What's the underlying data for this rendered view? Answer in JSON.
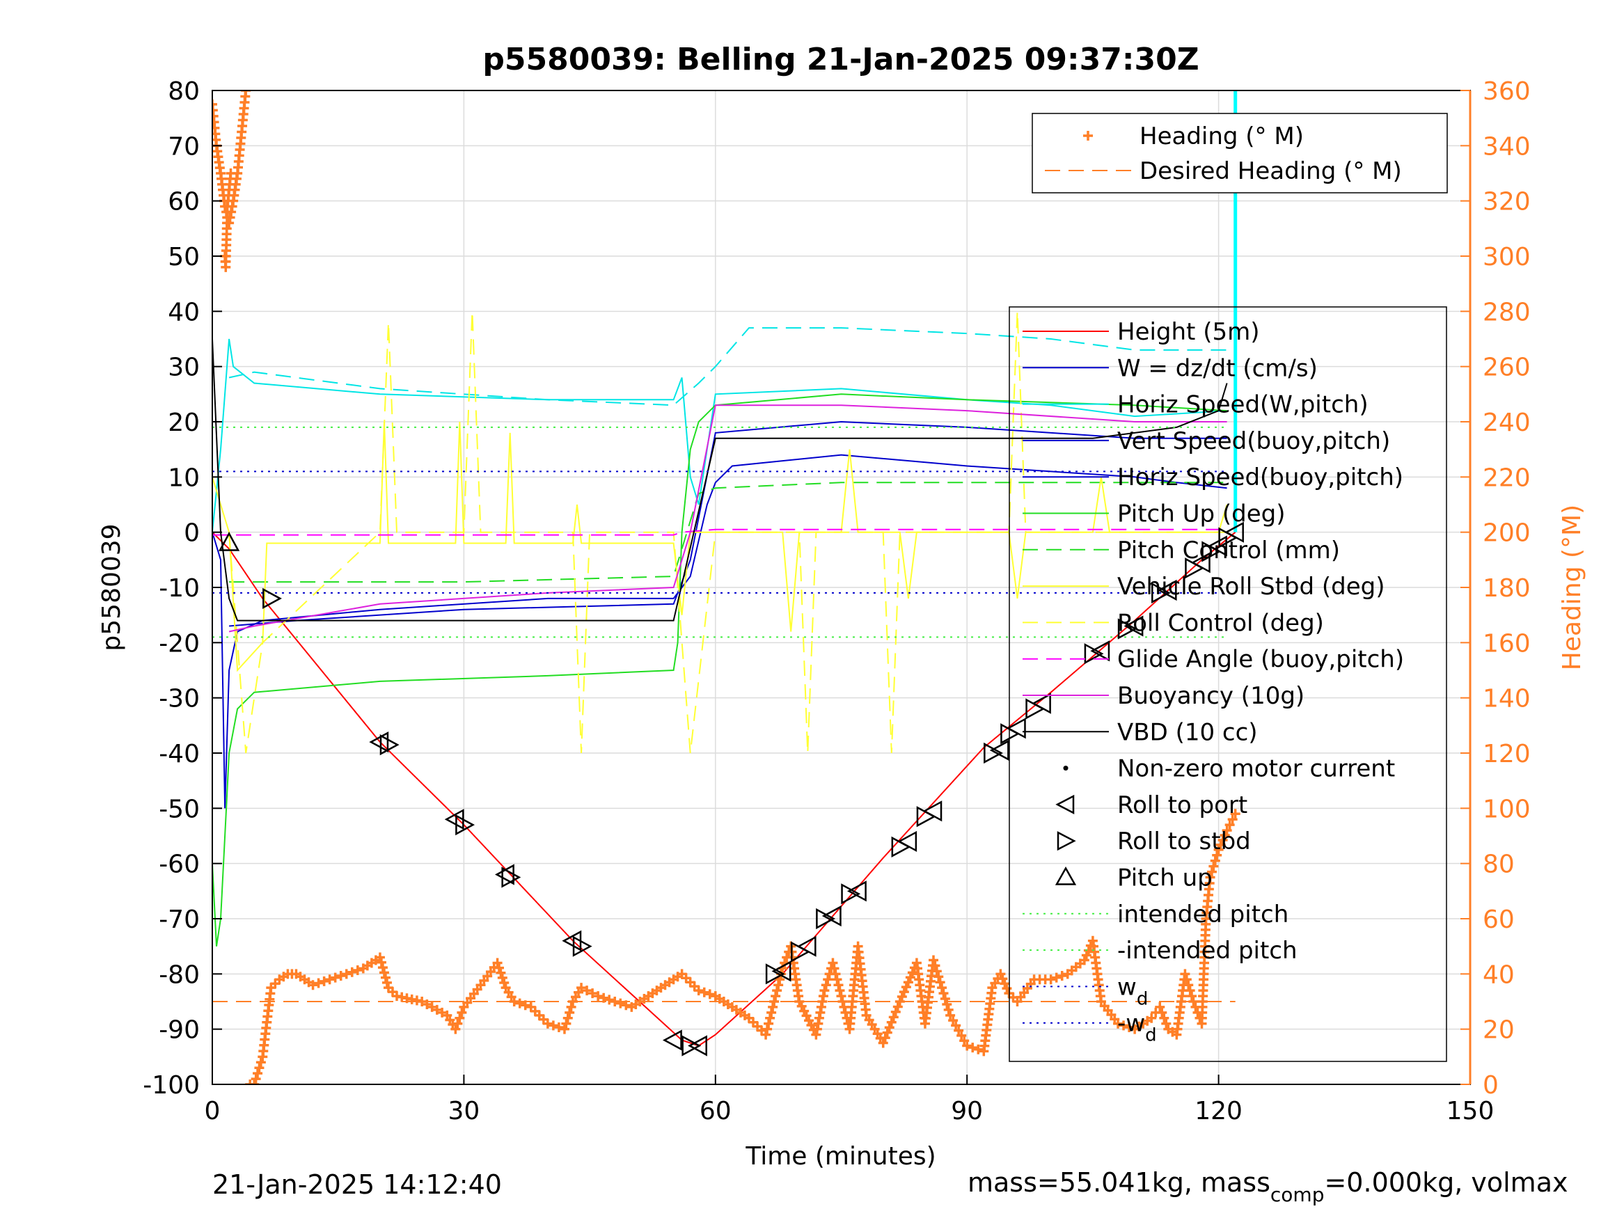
{
  "chart_data": {
    "type": "line",
    "title": "p5580039: Belling 21-Jan-2025 09:37:30Z",
    "xlabel": "Time (minutes)",
    "ylabel": "p5580039",
    "y2label": "Heading (°M)",
    "xlim": [
      0,
      150
    ],
    "ylim": [
      -100,
      80
    ],
    "y2lim": [
      0,
      360
    ],
    "xticks": [
      "0",
      "30",
      "60",
      "90",
      "120",
      "150"
    ],
    "yticks": [
      "80",
      "70",
      "60",
      "50",
      "40",
      "30",
      "20",
      "10",
      "0",
      "-10",
      "-20",
      "-30",
      "-40",
      "-50",
      "-60",
      "-70",
      "-80",
      "-90",
      "-100"
    ],
    "y2ticks": [
      "360",
      "340",
      "320",
      "300",
      "280",
      "260",
      "240",
      "220",
      "200",
      "180",
      "160",
      "140",
      "120",
      "100",
      "80",
      "60",
      "40",
      "20",
      "0"
    ],
    "grid": true,
    "footer_left": "21-Jan-2025 14:12:40",
    "footer_right": {
      "a": "mass=55.041kg, mass",
      "sub": "comp",
      "b": "=0.000kg, volmax"
    },
    "legend_heading": [
      {
        "label": "Heading (° M)",
        "color": "#ff7f27",
        "style": "plus"
      },
      {
        "label": "Desired Heading (° M)",
        "color": "#ff7f27",
        "style": "dash"
      }
    ],
    "legend_main": [
      {
        "label": "Height (5m)",
        "color": "#ff0000",
        "style": "solid"
      },
      {
        "label": "W = dz/dt (cm/s)",
        "color": "#0000cc",
        "style": "solid"
      },
      {
        "label": "Horiz Speed(W,pitch)",
        "color": "#00e5e5",
        "style": "solid"
      },
      {
        "label": "Vert Speed(buoy,pitch)",
        "color": "#0000cc",
        "style": "solid"
      },
      {
        "label": "Horiz Speed(buoy,pitch)",
        "color": "#0000cc",
        "style": "solid"
      },
      {
        "label": "Pitch Up (deg)",
        "color": "#22dd22",
        "style": "solid"
      },
      {
        "label": "Pitch Control (mm)",
        "color": "#22dd22",
        "style": "dash"
      },
      {
        "label": "Vehicle Roll Stbd (deg)",
        "color": "#ffff33",
        "style": "solid"
      },
      {
        "label": "Roll Control (deg)",
        "color": "#ffff33",
        "style": "dash"
      },
      {
        "label": "Glide Angle (buoy,pitch)",
        "color": "#ff00ff",
        "style": "dash"
      },
      {
        "label": "Buoyancy (10g)",
        "color": "#dd22dd",
        "style": "solid"
      },
      {
        "label": "VBD (10 cc)",
        "color": "#000000",
        "style": "solid"
      },
      {
        "label": "Non-zero motor current",
        "color": "#000000",
        "style": "dot"
      },
      {
        "label": "Roll to port",
        "color": "#000000",
        "style": "tri-left"
      },
      {
        "label": "Roll to stbd",
        "color": "#000000",
        "style": "tri-right"
      },
      {
        "label": "Pitch up",
        "color": "#000000",
        "style": "tri-up"
      },
      {
        "label": "intended pitch",
        "color": "#44ee44",
        "style": "dotted"
      },
      {
        "label": "-intended pitch",
        "color": "#44ee44",
        "style": "dotted"
      },
      {
        "label": "w",
        "sub": "d",
        "color": "#0000cc",
        "style": "dotted"
      },
      {
        "label": "-w",
        "sub": "d",
        "color": "#0000cc",
        "style": "dotted"
      }
    ],
    "series": [
      {
        "name": "Height (5m)",
        "axis": "left",
        "color": "#ff0000",
        "x": [
          0,
          2,
          6,
          20,
          30,
          43,
          56,
          58,
          60,
          68,
          80,
          92,
          100,
          110,
          118,
          122
        ],
        "y": [
          0,
          -3,
          -12,
          -38,
          -53,
          -74,
          -92,
          -93,
          -91,
          -80,
          -59,
          -39,
          -29,
          -16,
          -5,
          0
        ]
      },
      {
        "name": "W = dz/dt (cm/s)",
        "axis": "left",
        "color": "#0000cc",
        "x": [
          0,
          1,
          1.5,
          2,
          3,
          6,
          20,
          40,
          55,
          57,
          59,
          60,
          62,
          75,
          90,
          100,
          110,
          115,
          121
        ],
        "y": [
          0,
          -5,
          -50,
          -25,
          -18,
          -16,
          -14,
          -12,
          -12,
          -8,
          5,
          9,
          12,
          14,
          12,
          11,
          10,
          9,
          8
        ]
      },
      {
        "name": "Horiz Speed(W,pitch)",
        "axis": "left",
        "color": "#00e5e5",
        "x": [
          0,
          1,
          2,
          2.5,
          5,
          20,
          40,
          55,
          56,
          57,
          58,
          60,
          75,
          90,
          100,
          110,
          121
        ],
        "y": [
          0,
          15,
          35,
          30,
          27,
          25,
          24,
          24,
          28,
          10,
          5,
          25,
          26,
          24,
          23,
          21,
          22
        ]
      },
      {
        "name": "Vert Speed(buoy,pitch)",
        "axis": "left",
        "color": "#0000cc",
        "x": [
          2,
          10,
          30,
          55,
          57,
          60,
          75,
          90,
          110,
          121
        ],
        "y": [
          -17,
          -16,
          -14,
          -13,
          -5,
          18,
          20,
          19,
          17,
          17
        ]
      },
      {
        "name": "Horiz Speed(buoy,pitch)",
        "axis": "left",
        "color": "#00e5e5",
        "dashed": true,
        "x": [
          2,
          5,
          20,
          40,
          55,
          58,
          60,
          64,
          75,
          90,
          100,
          110,
          121
        ],
        "y": [
          28,
          29,
          26,
          24,
          23,
          27,
          30,
          37,
          37,
          36,
          35,
          33,
          33
        ]
      },
      {
        "name": "Pitch Up (deg)",
        "axis": "left",
        "color": "#22dd22",
        "x": [
          0,
          0.5,
          1,
          1.5,
          2,
          3,
          5,
          20,
          40,
          55,
          55.5,
          56,
          57,
          58,
          60,
          75,
          90,
          110,
          121
        ],
        "y": [
          -60,
          -75,
          -70,
          -55,
          -40,
          -32,
          -29,
          -27,
          -26,
          -25,
          -20,
          0,
          15,
          20,
          23,
          25,
          24,
          23,
          22
        ]
      },
      {
        "name": "Pitch Control (mm)",
        "axis": "left",
        "color": "#22dd22",
        "dashed": true,
        "x": [
          2,
          10,
          30,
          55,
          56,
          58,
          60,
          75,
          90,
          110,
          121
        ],
        "y": [
          -9,
          -9,
          -9,
          -8,
          -3,
          7,
          8,
          9,
          9,
          9,
          9
        ]
      },
      {
        "name": "Vehicle Roll Stbd (deg)",
        "axis": "left",
        "color": "#ffff33",
        "x": [
          0,
          1,
          2,
          3,
          6,
          6.5,
          20,
          20.5,
          21,
          29,
          29.5,
          30,
          35,
          35.5,
          36,
          43,
          43.5,
          44,
          55,
          56,
          57,
          60,
          68,
          69,
          70,
          75,
          76,
          77,
          82,
          83,
          84,
          95,
          96,
          97,
          105,
          106,
          107,
          120,
          121
        ],
        "y": [
          10,
          5,
          0,
          -25,
          -20,
          -2,
          -2,
          20,
          -2,
          -2,
          20,
          -2,
          -2,
          18,
          -2,
          -2,
          5,
          -2,
          -2,
          -15,
          0,
          0,
          0,
          -18,
          0,
          0,
          15,
          0,
          0,
          -12,
          0,
          0,
          -12,
          0,
          0,
          10,
          0,
          0,
          5
        ]
      },
      {
        "name": "Roll Control (deg)",
        "axis": "left",
        "color": "#ffff33",
        "dashed": true,
        "x": [
          2,
          4,
          6,
          20,
          21,
          22,
          30,
          31,
          32,
          43,
          44,
          45,
          55,
          57,
          60,
          70,
          71,
          72,
          80,
          81,
          82,
          95,
          96,
          97,
          110,
          121
        ],
        "y": [
          0,
          -40,
          -20,
          0,
          38,
          0,
          0,
          40,
          0,
          0,
          -40,
          0,
          0,
          -40,
          0,
          0,
          -40,
          0,
          0,
          -40,
          0,
          0,
          40,
          0,
          0,
          0
        ]
      },
      {
        "name": "Glide Angle (buoy,pitch)",
        "axis": "left",
        "color": "#ff00ff",
        "dashed": true,
        "x": [
          0,
          20,
          55,
          56,
          60,
          90,
          121
        ],
        "y": [
          -0.5,
          -0.5,
          -0.5,
          0,
          0.5,
          0.5,
          0.5
        ]
      },
      {
        "name": "Buoyancy (10g)",
        "axis": "left",
        "color": "#dd22dd",
        "x": [
          2,
          5,
          20,
          40,
          55,
          57,
          60,
          75,
          90,
          110,
          121
        ],
        "y": [
          -18,
          -17,
          -13,
          -11,
          -10,
          0,
          23,
          23,
          22,
          20,
          20
        ]
      },
      {
        "name": "VBD (10 cc)",
        "axis": "left",
        "color": "#000000",
        "x": [
          0,
          1,
          2,
          3,
          10,
          20,
          40,
          55,
          60,
          75,
          90,
          105,
          110,
          115,
          120,
          121
        ],
        "y": [
          35,
          0,
          -12,
          -16,
          -16,
          -16,
          -16,
          -16,
          17,
          17,
          17,
          17,
          18,
          19,
          22,
          27
        ]
      },
      {
        "name": "intended pitch",
        "axis": "left",
        "color": "#44ee44",
        "dotted": true,
        "x": [
          0,
          121
        ],
        "y": [
          19,
          19
        ]
      },
      {
        "name": "-intended pitch",
        "axis": "left",
        "color": "#44ee44",
        "dotted": true,
        "x": [
          0,
          121
        ],
        "y": [
          -19,
          -19
        ]
      },
      {
        "name": "w_d",
        "axis": "left",
        "color": "#0000cc",
        "dotted": true,
        "x": [
          0,
          121
        ],
        "y": [
          11,
          11
        ]
      },
      {
        "name": "-w_d",
        "axis": "left",
        "color": "#0000cc",
        "dotted": true,
        "x": [
          0,
          121
        ],
        "y": [
          -11,
          -11
        ]
      },
      {
        "name": "Desired Heading (° M)",
        "axis": "right",
        "color": "#ff7f27",
        "dashed": true,
        "x": [
          0,
          122
        ],
        "y": [
          30,
          30
        ]
      },
      {
        "name": "Heading (° M)",
        "axis": "right",
        "color": "#ff7f27",
        "marker": "plus",
        "x": [
          0,
          0.5,
          1,
          1.5,
          2,
          2.5,
          3,
          3.5,
          4,
          4.5,
          5,
          6,
          7,
          8,
          9,
          10,
          12,
          14,
          16,
          18,
          20,
          21,
          22,
          25,
          28,
          29,
          30,
          32,
          34,
          35,
          36,
          38,
          40,
          42,
          43,
          44,
          46,
          48,
          50,
          52,
          54,
          56,
          58,
          60,
          62,
          64,
          66,
          67,
          68,
          69,
          70,
          72,
          73,
          74,
          76,
          77,
          78,
          80,
          82,
          84,
          85,
          86,
          88,
          90,
          92,
          93,
          94,
          95,
          96,
          98,
          100,
          102,
          104,
          105,
          106,
          108,
          110,
          112,
          113,
          114,
          115,
          116,
          117,
          118,
          118.5,
          119,
          120,
          121,
          122
        ],
        "y": [
          355,
          340,
          330,
          318,
          312,
          320,
          330,
          345,
          360,
          0,
          0,
          10,
          35,
          38,
          40,
          40,
          36,
          38,
          40,
          42,
          46,
          35,
          32,
          30,
          25,
          20,
          28,
          36,
          44,
          35,
          30,
          28,
          22,
          20,
          30,
          35,
          32,
          30,
          28,
          32,
          36,
          40,
          34,
          32,
          28,
          24,
          18,
          30,
          42,
          50,
          30,
          18,
          34,
          44,
          20,
          50,
          25,
          15,
          30,
          44,
          22,
          45,
          25,
          14,
          12,
          35,
          40,
          33,
          30,
          38,
          38,
          40,
          45,
          52,
          30,
          22,
          20,
          24,
          28,
          20,
          18,
          40,
          30,
          22,
          60,
          75,
          85,
          92,
          98
        ]
      },
      {
        "name": "Heading (° M) early",
        "axis": "right",
        "color": "#ff7f27",
        "marker": "plus",
        "x": [
          1.5,
          1.6,
          1.8,
          2.2
        ],
        "y": [
          300,
          296,
          318,
          330
        ]
      }
    ],
    "event_markers": {
      "x": [
        2,
        7,
        20,
        21,
        29,
        30,
        35,
        35.5,
        43,
        44,
        55,
        57,
        58,
        67,
        68,
        70,
        71,
        73,
        74,
        76,
        77,
        82,
        83,
        85,
        86,
        93,
        94,
        95,
        96,
        98,
        99,
        105,
        106,
        109,
        110,
        113,
        114,
        117,
        118,
        119,
        120,
        121,
        122
      ],
      "y": [
        -2,
        -12,
        -38,
        -38.5,
        -52,
        -53,
        -62,
        -62.5,
        -74,
        -75,
        -92,
        -93,
        -93,
        -80,
        -79.5,
        -76,
        -75,
        -70,
        -69.5,
        -65.5,
        -65,
        -57,
        -56,
        -51.5,
        -50.5,
        -40,
        -39.5,
        -36.5,
        -35.5,
        -32,
        -31,
        -22,
        -21.5,
        -17.5,
        -17,
        -11,
        -10.5,
        -6.5,
        -5.5,
        -3.5,
        -2.5,
        -1,
        0
      ]
    },
    "vertical_marker": {
      "x": 122,
      "color": "#00ffff"
    }
  }
}
